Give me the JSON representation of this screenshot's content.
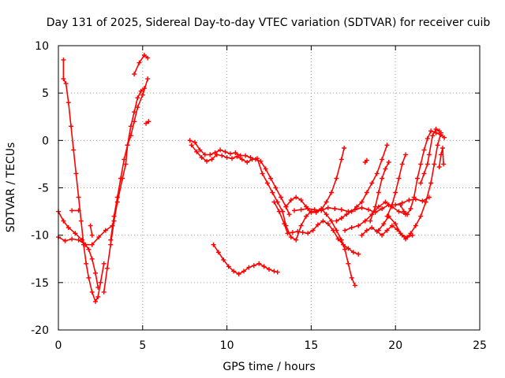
{
  "chart_data": {
    "type": "scatter",
    "title": "Day 131 of 2025, Sidereal Day-to-day VTEC variation (SDTVAR) for receiver cuib",
    "xlabel": "GPS time / hours",
    "ylabel": "SDTVAR / TECUs",
    "xlim": [
      0,
      25
    ],
    "ylim": [
      -20,
      10
    ],
    "xticks": [
      0,
      5,
      10,
      15,
      20,
      25
    ],
    "xtick_labels": [
      "0",
      "5",
      "10",
      "15",
      "20",
      "25"
    ],
    "yticks": [
      -20,
      -15,
      -10,
      -5,
      0,
      5,
      10
    ],
    "ytick_labels": [
      "-20",
      "-15",
      "-10",
      "-5",
      "0",
      "5",
      "10"
    ],
    "grid": true,
    "marker": "+",
    "color": "#ff0000",
    "series": [
      {
        "name": "trace-1",
        "points": [
          [
            0.3,
            8.5
          ],
          [
            0.3,
            6.5
          ],
          [
            0.45,
            6.0
          ],
          [
            0.6,
            4.0
          ],
          [
            0.75,
            1.5
          ],
          [
            0.9,
            -1.0
          ],
          [
            1.05,
            -3.5
          ],
          [
            1.2,
            -6.0
          ],
          [
            1.35,
            -8.5
          ],
          [
            1.5,
            -11.0
          ],
          [
            1.65,
            -13.0
          ],
          [
            1.8,
            -14.5
          ],
          [
            2.0,
            -16.0
          ],
          [
            2.2,
            -17.0
          ],
          [
            2.35,
            -16.5
          ],
          [
            2.5,
            -15.0
          ],
          [
            2.7,
            -13.0
          ]
        ]
      },
      {
        "name": "trace-2",
        "points": [
          [
            0.0,
            -7.5
          ],
          [
            0.3,
            -8.5
          ],
          [
            0.6,
            -9.2
          ],
          [
            1.0,
            -9.8
          ],
          [
            1.4,
            -10.5
          ],
          [
            1.8,
            -11.5
          ],
          [
            2.0,
            -12.5
          ],
          [
            2.2,
            -14.0
          ],
          [
            2.35,
            -15.5
          ]
        ]
      },
      {
        "name": "trace-3",
        "points": [
          [
            0.0,
            -10.2
          ],
          [
            0.4,
            -10.6
          ],
          [
            0.8,
            -10.4
          ],
          [
            1.2,
            -10.5
          ],
          [
            1.6,
            -11.0
          ],
          [
            2.0,
            -11.0
          ],
          [
            2.4,
            -10.2
          ],
          [
            2.8,
            -9.5
          ],
          [
            3.2,
            -9.0
          ]
        ]
      },
      {
        "name": "trace-4",
        "points": [
          [
            2.7,
            -16.0
          ],
          [
            2.9,
            -13.5
          ],
          [
            3.1,
            -11.0
          ],
          [
            3.3,
            -8.5
          ],
          [
            3.5,
            -6.5
          ],
          [
            3.8,
            -4.0
          ],
          [
            4.0,
            -2.5
          ],
          [
            4.1,
            -0.5
          ],
          [
            4.3,
            0.5
          ],
          [
            4.5,
            2.0
          ],
          [
            4.7,
            3.5
          ],
          [
            5.0,
            4.8
          ],
          [
            5.3,
            6.5
          ]
        ]
      },
      {
        "name": "trace-5",
        "points": [
          [
            3.1,
            -10.5
          ],
          [
            3.3,
            -8.0
          ],
          [
            3.5,
            -6.0
          ],
          [
            3.7,
            -4.0
          ],
          [
            3.9,
            -2.0
          ],
          [
            4.1,
            -0.5
          ],
          [
            4.3,
            1.5
          ],
          [
            4.5,
            3.0
          ],
          [
            4.7,
            4.5
          ],
          [
            4.9,
            5.2
          ],
          [
            5.1,
            5.5
          ]
        ]
      },
      {
        "name": "trace-6",
        "points": [
          [
            4.5,
            7.0
          ],
          [
            4.8,
            8.2
          ],
          [
            5.1,
            9.0
          ],
          [
            5.3,
            8.7
          ]
        ]
      },
      {
        "name": "trace-7",
        "points": [
          [
            5.2,
            1.8
          ],
          [
            5.35,
            2.0
          ]
        ]
      },
      {
        "name": "trace-8",
        "points": [
          [
            0.8,
            -7.4
          ],
          [
            1.2,
            -7.4
          ]
        ]
      },
      {
        "name": "trace-9",
        "points": [
          [
            1.9,
            -9.0
          ],
          [
            2.0,
            -10.0
          ]
        ]
      },
      {
        "name": "trace-10",
        "points": [
          [
            7.8,
            0.0
          ],
          [
            8.1,
            -0.2
          ],
          [
            8.4,
            -1.0
          ],
          [
            8.7,
            -1.5
          ],
          [
            9.0,
            -1.5
          ],
          [
            9.3,
            -1.3
          ],
          [
            9.6,
            -1.0
          ],
          [
            9.9,
            -1.2
          ],
          [
            10.2,
            -1.4
          ],
          [
            10.5,
            -1.3
          ],
          [
            10.8,
            -1.6
          ],
          [
            11.1,
            -1.6
          ],
          [
            11.4,
            -1.8
          ],
          [
            11.7,
            -2.0
          ],
          [
            12.0,
            -2.2
          ],
          [
            12.3,
            -3.0
          ],
          [
            12.6,
            -4.0
          ],
          [
            12.9,
            -5.0
          ],
          [
            13.2,
            -6.0
          ],
          [
            13.5,
            -7.0
          ],
          [
            13.7,
            -7.8
          ]
        ]
      },
      {
        "name": "trace-11",
        "points": [
          [
            7.9,
            -0.5
          ],
          [
            8.2,
            -1.2
          ],
          [
            8.5,
            -1.8
          ],
          [
            8.8,
            -2.2
          ],
          [
            9.1,
            -2.0
          ],
          [
            9.4,
            -1.5
          ],
          [
            9.7,
            -1.6
          ],
          [
            10.0,
            -1.8
          ],
          [
            10.3,
            -1.9
          ],
          [
            10.6,
            -1.7
          ],
          [
            10.9,
            -2.0
          ],
          [
            11.2,
            -2.3
          ],
          [
            11.5,
            -2.0
          ],
          [
            11.8,
            -1.9
          ],
          [
            12.1,
            -3.5
          ],
          [
            12.4,
            -4.5
          ],
          [
            12.7,
            -5.5
          ],
          [
            13.0,
            -6.5
          ],
          [
            13.3,
            -7.5
          ],
          [
            13.5,
            -9.0
          ],
          [
            13.8,
            -10.2
          ],
          [
            14.1,
            -10.5
          ],
          [
            14.4,
            -9.0
          ],
          [
            14.7,
            -8.0
          ],
          [
            15.0,
            -7.5
          ],
          [
            15.3,
            -7.5
          ],
          [
            15.6,
            -7.2
          ],
          [
            15.9,
            -7.8
          ],
          [
            16.2,
            -8.5
          ],
          [
            16.5,
            -9.5
          ],
          [
            16.8,
            -10.5
          ],
          [
            17.0,
            -11.5
          ],
          [
            17.2,
            -13.0
          ],
          [
            17.4,
            -14.5
          ],
          [
            17.6,
            -15.3
          ]
        ]
      },
      {
        "name": "trace-12",
        "points": [
          [
            9.2,
            -11.0
          ],
          [
            9.5,
            -11.8
          ],
          [
            9.8,
            -12.6
          ],
          [
            10.1,
            -13.3
          ],
          [
            10.4,
            -13.8
          ],
          [
            10.7,
            -14.1
          ],
          [
            11.0,
            -13.8
          ],
          [
            11.3,
            -13.4
          ],
          [
            11.6,
            -13.2
          ],
          [
            11.9,
            -13.0
          ],
          [
            12.2,
            -13.3
          ],
          [
            12.5,
            -13.6
          ],
          [
            12.8,
            -13.8
          ],
          [
            13.0,
            -13.9
          ]
        ]
      },
      {
        "name": "trace-13",
        "points": [
          [
            12.8,
            -6.5
          ],
          [
            13.1,
            -7.5
          ],
          [
            13.4,
            -8.8
          ],
          [
            13.6,
            -9.8
          ],
          [
            13.9,
            -9.7
          ],
          [
            14.2,
            -9.6
          ],
          [
            14.5,
            -9.7
          ],
          [
            14.8,
            -9.8
          ],
          [
            15.1,
            -9.5
          ],
          [
            15.4,
            -8.9
          ],
          [
            15.7,
            -8.5
          ],
          [
            16.0,
            -8.8
          ],
          [
            16.3,
            -9.5
          ],
          [
            16.6,
            -10.4
          ],
          [
            16.9,
            -11.0
          ],
          [
            17.2,
            -11.4
          ],
          [
            17.5,
            -11.8
          ],
          [
            17.8,
            -12.0
          ]
        ]
      },
      {
        "name": "trace-14",
        "points": [
          [
            13.5,
            -7.0
          ],
          [
            13.8,
            -6.3
          ],
          [
            14.1,
            -6.0
          ],
          [
            14.4,
            -6.3
          ],
          [
            14.7,
            -7.0
          ],
          [
            15.0,
            -7.6
          ],
          [
            15.3,
            -7.6
          ],
          [
            15.6,
            -7.3
          ],
          [
            15.9,
            -6.5
          ],
          [
            16.2,
            -5.5
          ],
          [
            16.5,
            -4.0
          ],
          [
            16.8,
            -2.0
          ],
          [
            16.95,
            -0.8
          ]
        ]
      },
      {
        "name": "trace-15",
        "points": [
          [
            14.0,
            -7.4
          ],
          [
            14.4,
            -7.3
          ],
          [
            14.8,
            -7.2
          ],
          [
            15.2,
            -7.3
          ],
          [
            15.6,
            -7.4
          ],
          [
            16.0,
            -7.1
          ],
          [
            16.4,
            -7.2
          ],
          [
            16.8,
            -7.3
          ],
          [
            17.2,
            -7.5
          ],
          [
            17.6,
            -7.3
          ],
          [
            18.0,
            -7.1
          ],
          [
            18.4,
            -7.3
          ],
          [
            18.8,
            -7.6
          ],
          [
            19.2,
            -7.2
          ],
          [
            19.6,
            -6.8
          ],
          [
            20.0,
            -6.8
          ],
          [
            20.4,
            -6.6
          ],
          [
            20.8,
            -6.3
          ],
          [
            21.2,
            -6.2
          ],
          [
            21.6,
            -6.4
          ],
          [
            22.0,
            -6.0
          ]
        ]
      },
      {
        "name": "trace-16",
        "points": [
          [
            16.5,
            -8.5
          ],
          [
            16.8,
            -8.2
          ],
          [
            17.1,
            -7.8
          ],
          [
            17.4,
            -7.5
          ],
          [
            17.7,
            -7.0
          ],
          [
            18.0,
            -6.5
          ],
          [
            18.3,
            -5.5
          ],
          [
            18.6,
            -4.5
          ],
          [
            18.9,
            -3.5
          ],
          [
            19.2,
            -2.0
          ],
          [
            19.5,
            -0.5
          ]
        ]
      },
      {
        "name": "trace-17",
        "points": [
          [
            17.0,
            -9.5
          ],
          [
            17.4,
            -9.2
          ],
          [
            17.8,
            -9.0
          ],
          [
            18.2,
            -8.5
          ],
          [
            18.6,
            -7.8
          ],
          [
            19.0,
            -7.0
          ],
          [
            19.4,
            -6.5
          ],
          [
            19.8,
            -7.0
          ],
          [
            20.2,
            -7.5
          ],
          [
            20.6,
            -7.8
          ]
        ]
      },
      {
        "name": "trace-18",
        "points": [
          [
            18.0,
            -10.0
          ],
          [
            18.3,
            -9.5
          ],
          [
            18.6,
            -9.2
          ],
          [
            18.9,
            -9.6
          ],
          [
            19.2,
            -10.0
          ],
          [
            19.5,
            -9.5
          ],
          [
            19.8,
            -9.0
          ],
          [
            20.1,
            -9.4
          ],
          [
            20.4,
            -10.0
          ],
          [
            20.7,
            -10.2
          ],
          [
            21.0,
            -10.0
          ]
        ]
      },
      {
        "name": "trace-19",
        "points": [
          [
            18.5,
            -8.5
          ],
          [
            18.8,
            -7.0
          ],
          [
            19.0,
            -5.5
          ],
          [
            19.2,
            -4.0
          ],
          [
            19.4,
            -3.0
          ],
          [
            19.6,
            -2.3
          ]
        ]
      },
      {
        "name": "trace-20",
        "points": [
          [
            19.5,
            -8.0
          ],
          [
            19.8,
            -6.8
          ],
          [
            20.0,
            -5.5
          ],
          [
            20.2,
            -4.0
          ],
          [
            20.4,
            -2.5
          ],
          [
            20.6,
            -1.5
          ]
        ]
      },
      {
        "name": "trace-21",
        "points": [
          [
            20.3,
            -6.8
          ],
          [
            20.5,
            -7.5
          ],
          [
            20.7,
            -7.8
          ],
          [
            20.9,
            -7.2
          ],
          [
            21.1,
            -6.0
          ],
          [
            21.3,
            -4.0
          ],
          [
            21.5,
            -2.5
          ],
          [
            21.7,
            -1.0
          ],
          [
            21.9,
            0.2
          ],
          [
            22.1,
            1.0
          ],
          [
            22.4,
            0.8
          ],
          [
            22.7,
            0.6
          ],
          [
            22.9,
            0.3
          ]
        ]
      },
      {
        "name": "trace-22",
        "points": [
          [
            19.0,
            -9.5
          ],
          [
            19.3,
            -8.8
          ],
          [
            19.6,
            -8.0
          ],
          [
            20.0,
            -8.8
          ],
          [
            20.3,
            -9.8
          ],
          [
            20.6,
            -10.4
          ],
          [
            20.9,
            -9.8
          ],
          [
            21.2,
            -9.0
          ],
          [
            21.5,
            -8.0
          ],
          [
            21.8,
            -6.5
          ],
          [
            22.1,
            -4.5
          ],
          [
            22.3,
            -2.5
          ],
          [
            22.5,
            -0.5
          ],
          [
            22.7,
            0.8
          ]
        ]
      },
      {
        "name": "trace-23",
        "points": [
          [
            21.5,
            -4.5
          ],
          [
            21.7,
            -3.5
          ],
          [
            21.9,
            -2.5
          ],
          [
            22.0,
            -1.5
          ],
          [
            22.2,
            0.5
          ],
          [
            22.4,
            1.2
          ],
          [
            22.6,
            1.0
          ]
        ]
      },
      {
        "name": "trace-24",
        "points": [
          [
            22.6,
            -2.8
          ],
          [
            22.7,
            -1.5
          ],
          [
            22.8,
            -0.8
          ],
          [
            22.85,
            -2.5
          ]
        ]
      },
      {
        "name": "trace-25",
        "points": [
          [
            18.2,
            -2.3
          ],
          [
            18.3,
            -2.1
          ]
        ]
      }
    ]
  }
}
